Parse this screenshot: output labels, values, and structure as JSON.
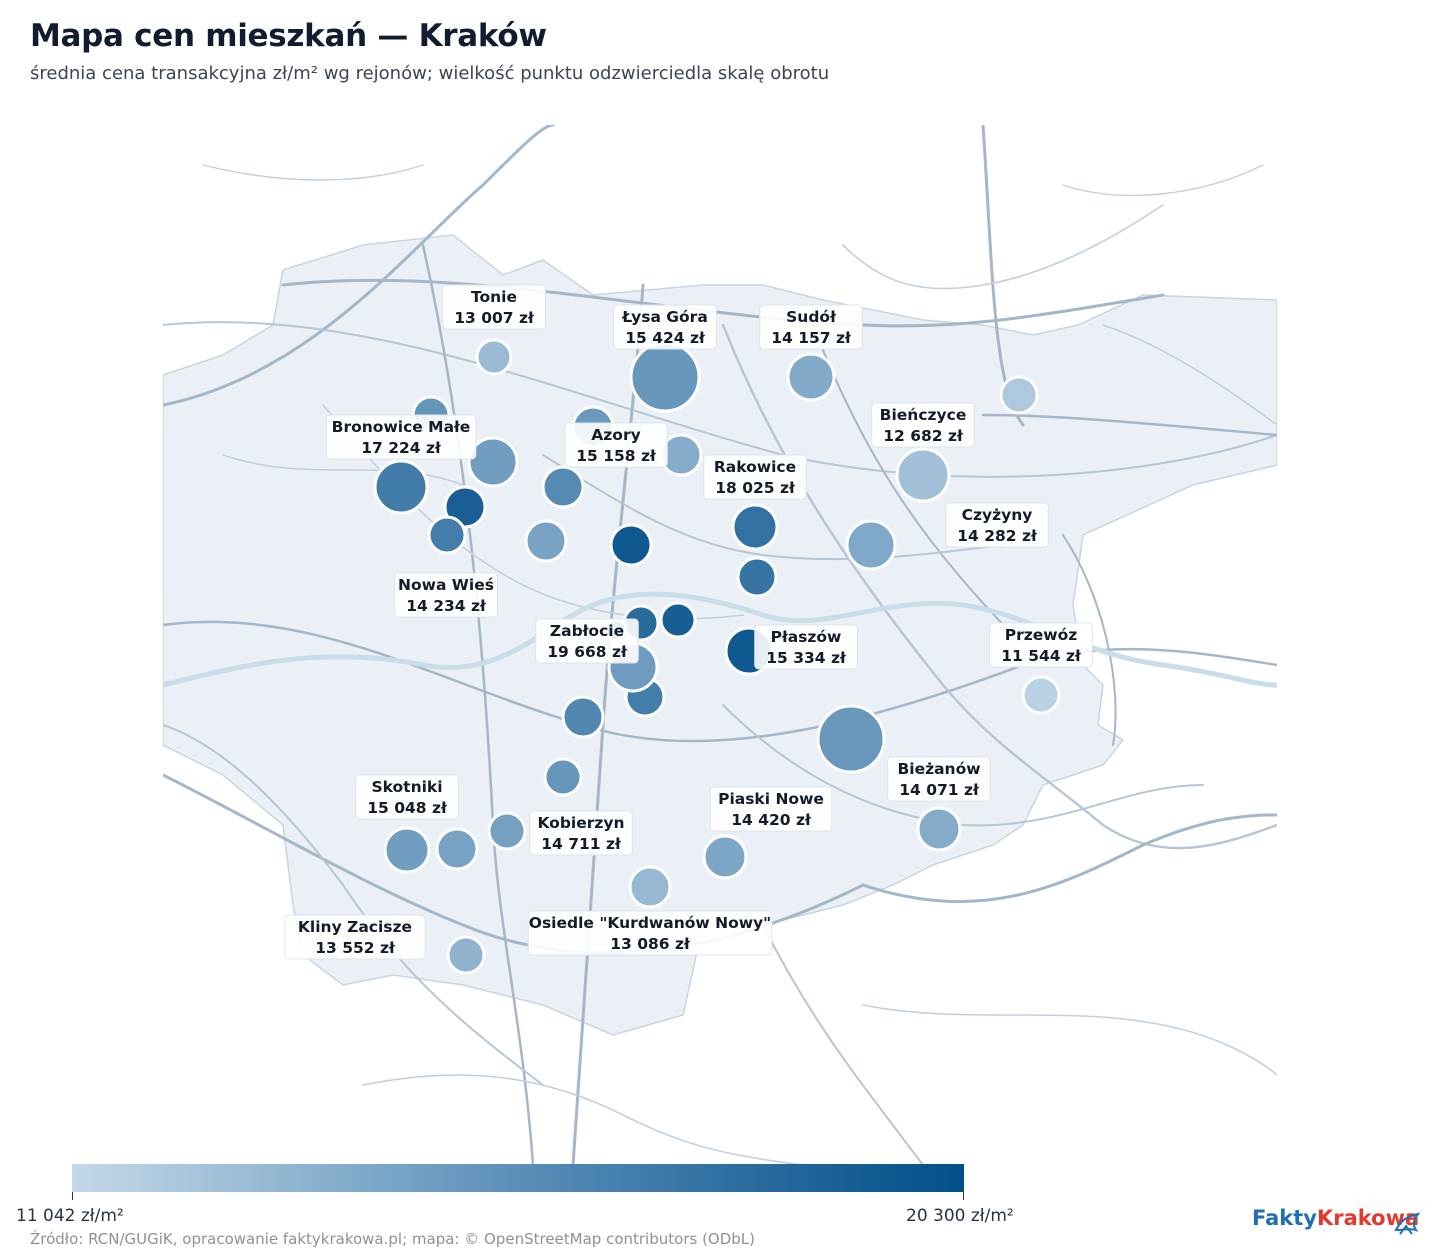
{
  "title": "Mapa cen mieszkań — Kraków",
  "subtitle": "średnia cena transakcyjna zł/m² wg rejonów; wielkość punktu odzwierciedla skalę obrotu",
  "map": {
    "type": "bubble-map",
    "colors": {
      "min": "#c4d8e9",
      "max": "#024f8a",
      "city_fill": "#eaf0f6",
      "roads": "#a4b7c9"
    },
    "labeled_points": [
      {
        "name": "Tonie",
        "price": "13 007 zł",
        "value": 13007
      },
      {
        "name": "Łysa Góra",
        "price": "15 424 zł",
        "value": 15424
      },
      {
        "name": "Sudół",
        "price": "14 157 zł",
        "value": 14157
      },
      {
        "name": "Bronowice Małe",
        "price": "17 224 zł",
        "value": 17224
      },
      {
        "name": "Azory",
        "price": "15 158 zł",
        "value": 15158
      },
      {
        "name": "Bieńczyce",
        "price": "12 682 zł",
        "value": 12682
      },
      {
        "name": "Rakowice",
        "price": "18 025 zł",
        "value": 18025
      },
      {
        "name": "Czyżyny",
        "price": "14 282 zł",
        "value": 14282
      },
      {
        "name": "Nowa Wieś",
        "price": "14 234 zł",
        "value": 14234
      },
      {
        "name": "Zabłocie",
        "price": "19 668 zł",
        "value": 19668
      },
      {
        "name": "Płaszów",
        "price": "15 334 zł",
        "value": 15334
      },
      {
        "name": "Przewóz",
        "price": "11 544 zł",
        "value": 11544
      },
      {
        "name": "Skotniki",
        "price": "15 048 zł",
        "value": 15048
      },
      {
        "name": "Piaski Nowe",
        "price": "14 420 zł",
        "value": 14420
      },
      {
        "name": "Bieżanów",
        "price": "14 071 zł",
        "value": 14071
      },
      {
        "name": "Kobierzyn",
        "price": "14 711 zł",
        "value": 14711
      },
      {
        "name": "Kliny Zacisze",
        "price": "13 552 zł",
        "value": 13552
      },
      {
        "name": "Osiedle \"Kurdwanów Nowy\"",
        "price": "13 086 zł",
        "value": 13086
      }
    ]
  },
  "legend": {
    "min_label": "11 042 zł/m²",
    "max_label": "20 300 zł/m²",
    "min_value": 11042,
    "max_value": 20300
  },
  "source": "Źródło: RCN/GUGiK, opracowanie faktykrakowa.pl; mapa: © OpenStreetMap contributors (ODbL)",
  "logo": {
    "part1": "Fakty",
    "part2": "Krakowa"
  }
}
